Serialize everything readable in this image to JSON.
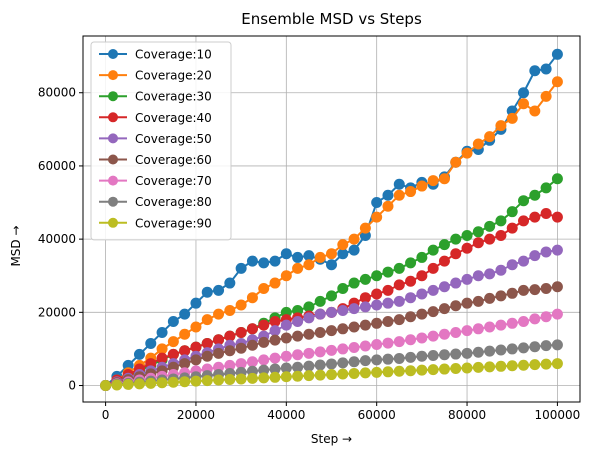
{
  "chart_data": {
    "type": "line",
    "title": "Ensemble MSD vs Steps",
    "xlabel": "Step →",
    "ylabel": "MSD →",
    "xlim": [
      -5000,
      105000
    ],
    "ylim": [
      -4500,
      95500
    ],
    "xticks": [
      0,
      20000,
      40000,
      60000,
      80000,
      100000
    ],
    "xtick_labels": [
      "0",
      "20000",
      "40000",
      "60000",
      "80000",
      "100000"
    ],
    "yticks": [
      0,
      20000,
      40000,
      60000,
      80000
    ],
    "ytick_labels": [
      "0",
      "20000",
      "40000",
      "60000",
      "80000"
    ],
    "grid": true,
    "legend_position": "top-left",
    "marker": "circle",
    "series": [
      {
        "name": "Coverage:10",
        "color": "#1f77b4",
        "x": [
          0,
          2500,
          5000,
          7500,
          10000,
          12500,
          15000,
          17500,
          20000,
          22500,
          25000,
          27500,
          30000,
          32500,
          35000,
          37500,
          40000,
          42500,
          45000,
          47500,
          50000,
          52500,
          55000,
          57500,
          60000,
          62500,
          65000,
          67500,
          70000,
          72500,
          75000,
          77500,
          80000,
          82500,
          85000,
          87500,
          90000,
          92500,
          95000,
          97500,
          100000
        ],
        "values": [
          0,
          2500,
          5500,
          8500,
          11500,
          14500,
          17500,
          19500,
          22500,
          25500,
          26000,
          28000,
          32000,
          34000,
          33500,
          34000,
          36000,
          35000,
          35500,
          34500,
          33000,
          36000,
          37000,
          41000,
          50000,
          52000,
          55000,
          54000,
          55500,
          55000,
          57000,
          61000,
          64000,
          64500,
          67000,
          70000,
          75000,
          80000,
          86000,
          86500,
          90500
        ]
      },
      {
        "name": "Coverage:20",
        "color": "#ff7f0e",
        "x": [
          0,
          2500,
          5000,
          7500,
          10000,
          12500,
          15000,
          17500,
          20000,
          22500,
          25000,
          27500,
          30000,
          32500,
          35000,
          37500,
          40000,
          42500,
          45000,
          47500,
          50000,
          52500,
          55000,
          57500,
          60000,
          62500,
          65000,
          67500,
          70000,
          72500,
          75000,
          77500,
          80000,
          82500,
          85000,
          87500,
          90000,
          92500,
          95000,
          97500,
          100000
        ],
        "values": [
          0,
          1500,
          3500,
          5500,
          7500,
          10000,
          12000,
          14000,
          16000,
          18000,
          19500,
          20500,
          22000,
          24000,
          26500,
          28000,
          30000,
          32000,
          33000,
          35000,
          36000,
          38500,
          40000,
          43000,
          46000,
          49000,
          52000,
          53000,
          54500,
          56000,
          56500,
          61000,
          63500,
          66000,
          68000,
          71000,
          73000,
          77000,
          75000,
          79000,
          83000
        ]
      },
      {
        "name": "Coverage:30",
        "color": "#2ca02c",
        "x": [
          0,
          2500,
          5000,
          7500,
          10000,
          12500,
          15000,
          17500,
          20000,
          22500,
          25000,
          27500,
          30000,
          32500,
          35000,
          37500,
          40000,
          42500,
          45000,
          47500,
          50000,
          52500,
          55000,
          57500,
          60000,
          62500,
          65000,
          67500,
          70000,
          72500,
          75000,
          77500,
          80000,
          82500,
          85000,
          87500,
          90000,
          92500,
          95000,
          97500,
          100000
        ],
        "values": [
          0,
          1200,
          2500,
          4000,
          5500,
          7000,
          8500,
          9500,
          10500,
          11500,
          12500,
          13500,
          14500,
          15500,
          17000,
          18500,
          20000,
          20500,
          21500,
          23000,
          24500,
          26500,
          28000,
          29000,
          30000,
          31000,
          32000,
          33500,
          35000,
          37000,
          38500,
          40000,
          41000,
          42000,
          43500,
          45000,
          47500,
          50500,
          52000,
          54000,
          56500
        ]
      },
      {
        "name": "Coverage:40",
        "color": "#d62728",
        "x": [
          0,
          2500,
          5000,
          7500,
          10000,
          12500,
          15000,
          17500,
          20000,
          22500,
          25000,
          27500,
          30000,
          32500,
          35000,
          37500,
          40000,
          42500,
          45000,
          47500,
          50000,
          52500,
          55000,
          57500,
          60000,
          62500,
          65000,
          67500,
          70000,
          72500,
          75000,
          77500,
          80000,
          82500,
          85000,
          87500,
          90000,
          92500,
          95000,
          97500,
          100000
        ],
        "values": [
          0,
          1500,
          3000,
          4500,
          6000,
          7500,
          8500,
          9500,
          10500,
          11500,
          12500,
          13500,
          14500,
          15500,
          16500,
          17500,
          18000,
          18500,
          19000,
          19500,
          20000,
          21000,
          22500,
          24000,
          25000,
          26000,
          27500,
          28500,
          30000,
          32000,
          34000,
          36000,
          37500,
          39000,
          40000,
          41000,
          43000,
          45000,
          46000,
          47000,
          46000
        ]
      },
      {
        "name": "Coverage:50",
        "color": "#9467bd",
        "x": [
          0,
          2500,
          5000,
          7500,
          10000,
          12500,
          15000,
          17500,
          20000,
          22500,
          25000,
          27500,
          30000,
          32500,
          35000,
          37500,
          40000,
          42500,
          45000,
          47500,
          50000,
          52500,
          55000,
          57500,
          60000,
          62500,
          65000,
          67500,
          70000,
          72500,
          75000,
          77500,
          80000,
          82500,
          85000,
          87500,
          90000,
          92500,
          95000,
          97500,
          100000
        ],
        "values": [
          0,
          1000,
          2000,
          3000,
          4000,
          5000,
          6000,
          7000,
          8000,
          9000,
          10000,
          11000,
          11500,
          12500,
          13500,
          15000,
          16500,
          17500,
          18500,
          19500,
          20000,
          20500,
          21000,
          21500,
          22000,
          22500,
          23000,
          24000,
          25000,
          26000,
          27000,
          28000,
          29000,
          30000,
          30500,
          31500,
          33000,
          34000,
          35500,
          36500,
          37000
        ]
      },
      {
        "name": "Coverage:60",
        "color": "#8c564b",
        "x": [
          0,
          2500,
          5000,
          7500,
          10000,
          12500,
          15000,
          17500,
          20000,
          22500,
          25000,
          27500,
          30000,
          32500,
          35000,
          37500,
          40000,
          42500,
          45000,
          47500,
          50000,
          52500,
          55000,
          57500,
          60000,
          62500,
          65000,
          67500,
          70000,
          72500,
          75000,
          77500,
          80000,
          82500,
          85000,
          87500,
          90000,
          92500,
          95000,
          97500,
          100000
        ],
        "values": [
          0,
          800,
          1600,
          2400,
          3200,
          4000,
          5000,
          6000,
          7000,
          8000,
          8800,
          9500,
          10200,
          11000,
          11800,
          12400,
          13000,
          13500,
          14000,
          14500,
          15000,
          15500,
          16000,
          16500,
          17000,
          17500,
          18000,
          18800,
          19500,
          20200,
          21000,
          21800,
          22500,
          23000,
          23800,
          24500,
          25200,
          26000,
          26200,
          26500,
          27000
        ]
      },
      {
        "name": "Coverage:70",
        "color": "#e377c2",
        "x": [
          0,
          2500,
          5000,
          7500,
          10000,
          12500,
          15000,
          17500,
          20000,
          22500,
          25000,
          27500,
          30000,
          32500,
          35000,
          37500,
          40000,
          42500,
          45000,
          47500,
          50000,
          52500,
          55000,
          57500,
          60000,
          62500,
          65000,
          67500,
          70000,
          72500,
          75000,
          77500,
          80000,
          82500,
          85000,
          87500,
          90000,
          92500,
          95000,
          97500,
          100000
        ],
        "values": [
          0,
          500,
          1000,
          1500,
          2000,
          2500,
          3000,
          3500,
          4000,
          4500,
          5000,
          5500,
          6000,
          6500,
          7000,
          7500,
          8000,
          8400,
          8800,
          9200,
          9600,
          10000,
          10400,
          10800,
          11200,
          11600,
          12000,
          12500,
          13000,
          13500,
          14000,
          14500,
          15000,
          15500,
          16000,
          16500,
          17000,
          17500,
          18200,
          18800,
          19500
        ]
      },
      {
        "name": "Coverage:80",
        "color": "#7f7f7f",
        "x": [
          0,
          2500,
          5000,
          7500,
          10000,
          12500,
          15000,
          17500,
          20000,
          22500,
          25000,
          27500,
          30000,
          32500,
          35000,
          37500,
          40000,
          42500,
          45000,
          47500,
          50000,
          52500,
          55000,
          57500,
          60000,
          62500,
          65000,
          67500,
          70000,
          72500,
          75000,
          77500,
          80000,
          82500,
          85000,
          87500,
          90000,
          92500,
          95000,
          97500,
          100000
        ],
        "values": [
          0,
          300,
          600,
          900,
          1200,
          1500,
          1800,
          2100,
          2400,
          2700,
          3000,
          3300,
          3600,
          3900,
          4200,
          4500,
          4800,
          5000,
          5300,
          5600,
          5900,
          6200,
          6500,
          6800,
          7000,
          7200,
          7400,
          7700,
          8000,
          8200,
          8400,
          8600,
          8800,
          9100,
          9400,
          9700,
          10000,
          10300,
          10600,
          10900,
          11100
        ]
      },
      {
        "name": "Coverage:90",
        "color": "#bcbd22",
        "x": [
          0,
          2500,
          5000,
          7500,
          10000,
          12500,
          15000,
          17500,
          20000,
          22500,
          25000,
          27500,
          30000,
          32500,
          35000,
          37500,
          40000,
          42500,
          45000,
          47500,
          50000,
          52500,
          55000,
          57500,
          60000,
          62500,
          65000,
          67500,
          70000,
          72500,
          75000,
          77500,
          80000,
          82500,
          85000,
          87500,
          90000,
          92500,
          95000,
          97500,
          100000
        ],
        "values": [
          0,
          150,
          300,
          450,
          600,
          750,
          900,
          1050,
          1200,
          1350,
          1500,
          1650,
          1800,
          1950,
          2100,
          2250,
          2400,
          2550,
          2700,
          2850,
          3000,
          3150,
          3300,
          3450,
          3600,
          3750,
          3900,
          4050,
          4200,
          4350,
          4500,
          4650,
          4800,
          4950,
          5100,
          5250,
          5400,
          5550,
          5700,
          5850,
          6000
        ]
      }
    ]
  }
}
